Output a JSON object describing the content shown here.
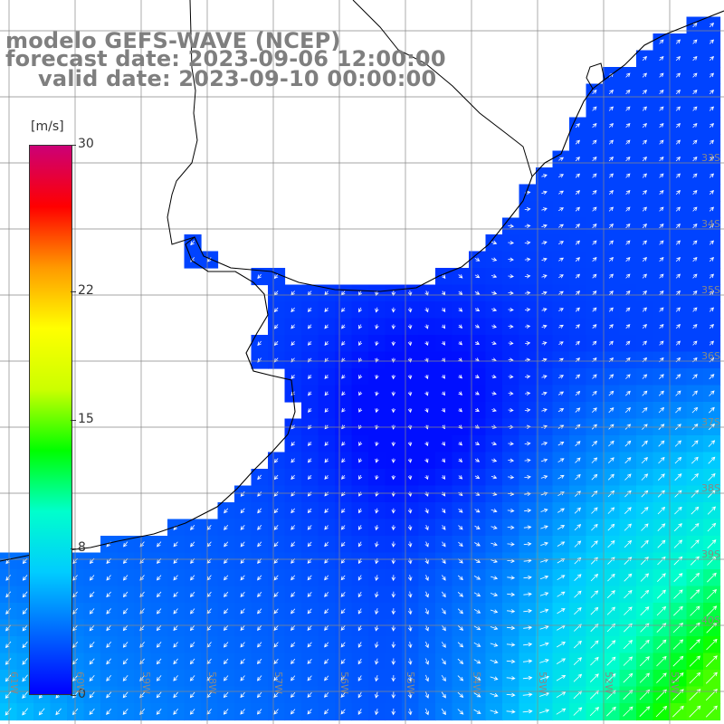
{
  "title": {
    "line1": "modelo GEFS-WAVE (NCEP)",
    "line2": "forecast date: 2023-09-06 12:00:00",
    "line3": "valid date: 2023-09-10 00:00:00"
  },
  "colorbar": {
    "unit": "[m/s]",
    "ticks": [
      {
        "label": "30",
        "value": 30
      },
      {
        "label": "22",
        "value": 22
      },
      {
        "label": "15",
        "value": 15
      },
      {
        "label": "8",
        "value": 8
      },
      {
        "label": "0",
        "value": 0
      }
    ],
    "colors": [
      "#0000ff",
      "#0066ff",
      "#00ccff",
      "#00ffcc",
      "#00ff00",
      "#ccff00",
      "#ffff00",
      "#ff9900",
      "#ff0000",
      "#cc0077"
    ]
  },
  "lat_labels": [
    "33S",
    "34S",
    "35S",
    "36S",
    "37S",
    "38S",
    "39S",
    "40S"
  ],
  "lon_labels": [
    "61W",
    "60W",
    "59W",
    "58W",
    "57W",
    "56W",
    "55W",
    "54W",
    "53W",
    "52W",
    "51W"
  ],
  "map": {
    "land_color": "#ffffff",
    "coast_color": "#000000",
    "grid_color": "#888888",
    "arrow_color": "#ffffff"
  }
}
